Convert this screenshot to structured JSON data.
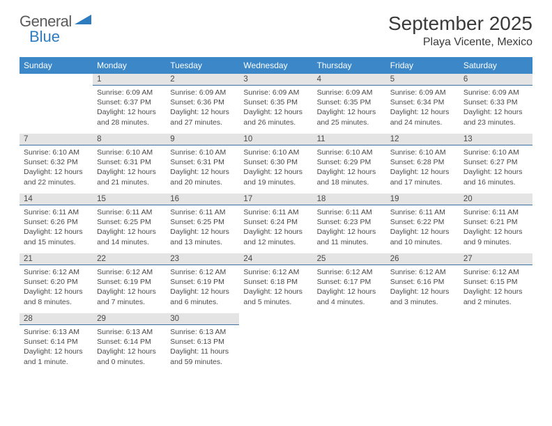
{
  "logo": {
    "part1": "General",
    "part2": "Blue"
  },
  "title": "September 2025",
  "location": "Playa Vicente, Mexico",
  "colors": {
    "header_bg": "#3b87c8",
    "header_text": "#ffffff",
    "daybar_bg": "#e4e4e4",
    "daybar_border": "#3b6fa3",
    "text": "#4a4a4a",
    "logo_blue": "#2e7cc0"
  },
  "day_headers": [
    "Sunday",
    "Monday",
    "Tuesday",
    "Wednesday",
    "Thursday",
    "Friday",
    "Saturday"
  ],
  "weeks": [
    [
      {
        "n": "",
        "sunrise": "",
        "sunset": "",
        "daylight": ""
      },
      {
        "n": "1",
        "sunrise": "Sunrise: 6:09 AM",
        "sunset": "Sunset: 6:37 PM",
        "daylight": "Daylight: 12 hours and 28 minutes."
      },
      {
        "n": "2",
        "sunrise": "Sunrise: 6:09 AM",
        "sunset": "Sunset: 6:36 PM",
        "daylight": "Daylight: 12 hours and 27 minutes."
      },
      {
        "n": "3",
        "sunrise": "Sunrise: 6:09 AM",
        "sunset": "Sunset: 6:35 PM",
        "daylight": "Daylight: 12 hours and 26 minutes."
      },
      {
        "n": "4",
        "sunrise": "Sunrise: 6:09 AM",
        "sunset": "Sunset: 6:35 PM",
        "daylight": "Daylight: 12 hours and 25 minutes."
      },
      {
        "n": "5",
        "sunrise": "Sunrise: 6:09 AM",
        "sunset": "Sunset: 6:34 PM",
        "daylight": "Daylight: 12 hours and 24 minutes."
      },
      {
        "n": "6",
        "sunrise": "Sunrise: 6:09 AM",
        "sunset": "Sunset: 6:33 PM",
        "daylight": "Daylight: 12 hours and 23 minutes."
      }
    ],
    [
      {
        "n": "7",
        "sunrise": "Sunrise: 6:10 AM",
        "sunset": "Sunset: 6:32 PM",
        "daylight": "Daylight: 12 hours and 22 minutes."
      },
      {
        "n": "8",
        "sunrise": "Sunrise: 6:10 AM",
        "sunset": "Sunset: 6:31 PM",
        "daylight": "Daylight: 12 hours and 21 minutes."
      },
      {
        "n": "9",
        "sunrise": "Sunrise: 6:10 AM",
        "sunset": "Sunset: 6:31 PM",
        "daylight": "Daylight: 12 hours and 20 minutes."
      },
      {
        "n": "10",
        "sunrise": "Sunrise: 6:10 AM",
        "sunset": "Sunset: 6:30 PM",
        "daylight": "Daylight: 12 hours and 19 minutes."
      },
      {
        "n": "11",
        "sunrise": "Sunrise: 6:10 AM",
        "sunset": "Sunset: 6:29 PM",
        "daylight": "Daylight: 12 hours and 18 minutes."
      },
      {
        "n": "12",
        "sunrise": "Sunrise: 6:10 AM",
        "sunset": "Sunset: 6:28 PM",
        "daylight": "Daylight: 12 hours and 17 minutes."
      },
      {
        "n": "13",
        "sunrise": "Sunrise: 6:10 AM",
        "sunset": "Sunset: 6:27 PM",
        "daylight": "Daylight: 12 hours and 16 minutes."
      }
    ],
    [
      {
        "n": "14",
        "sunrise": "Sunrise: 6:11 AM",
        "sunset": "Sunset: 6:26 PM",
        "daylight": "Daylight: 12 hours and 15 minutes."
      },
      {
        "n": "15",
        "sunrise": "Sunrise: 6:11 AM",
        "sunset": "Sunset: 6:25 PM",
        "daylight": "Daylight: 12 hours and 14 minutes."
      },
      {
        "n": "16",
        "sunrise": "Sunrise: 6:11 AM",
        "sunset": "Sunset: 6:25 PM",
        "daylight": "Daylight: 12 hours and 13 minutes."
      },
      {
        "n": "17",
        "sunrise": "Sunrise: 6:11 AM",
        "sunset": "Sunset: 6:24 PM",
        "daylight": "Daylight: 12 hours and 12 minutes."
      },
      {
        "n": "18",
        "sunrise": "Sunrise: 6:11 AM",
        "sunset": "Sunset: 6:23 PM",
        "daylight": "Daylight: 12 hours and 11 minutes."
      },
      {
        "n": "19",
        "sunrise": "Sunrise: 6:11 AM",
        "sunset": "Sunset: 6:22 PM",
        "daylight": "Daylight: 12 hours and 10 minutes."
      },
      {
        "n": "20",
        "sunrise": "Sunrise: 6:11 AM",
        "sunset": "Sunset: 6:21 PM",
        "daylight": "Daylight: 12 hours and 9 minutes."
      }
    ],
    [
      {
        "n": "21",
        "sunrise": "Sunrise: 6:12 AM",
        "sunset": "Sunset: 6:20 PM",
        "daylight": "Daylight: 12 hours and 8 minutes."
      },
      {
        "n": "22",
        "sunrise": "Sunrise: 6:12 AM",
        "sunset": "Sunset: 6:19 PM",
        "daylight": "Daylight: 12 hours and 7 minutes."
      },
      {
        "n": "23",
        "sunrise": "Sunrise: 6:12 AM",
        "sunset": "Sunset: 6:19 PM",
        "daylight": "Daylight: 12 hours and 6 minutes."
      },
      {
        "n": "24",
        "sunrise": "Sunrise: 6:12 AM",
        "sunset": "Sunset: 6:18 PM",
        "daylight": "Daylight: 12 hours and 5 minutes."
      },
      {
        "n": "25",
        "sunrise": "Sunrise: 6:12 AM",
        "sunset": "Sunset: 6:17 PM",
        "daylight": "Daylight: 12 hours and 4 minutes."
      },
      {
        "n": "26",
        "sunrise": "Sunrise: 6:12 AM",
        "sunset": "Sunset: 6:16 PM",
        "daylight": "Daylight: 12 hours and 3 minutes."
      },
      {
        "n": "27",
        "sunrise": "Sunrise: 6:12 AM",
        "sunset": "Sunset: 6:15 PM",
        "daylight": "Daylight: 12 hours and 2 minutes."
      }
    ],
    [
      {
        "n": "28",
        "sunrise": "Sunrise: 6:13 AM",
        "sunset": "Sunset: 6:14 PM",
        "daylight": "Daylight: 12 hours and 1 minute."
      },
      {
        "n": "29",
        "sunrise": "Sunrise: 6:13 AM",
        "sunset": "Sunset: 6:14 PM",
        "daylight": "Daylight: 12 hours and 0 minutes."
      },
      {
        "n": "30",
        "sunrise": "Sunrise: 6:13 AM",
        "sunset": "Sunset: 6:13 PM",
        "daylight": "Daylight: 11 hours and 59 minutes."
      },
      {
        "n": "",
        "sunrise": "",
        "sunset": "",
        "daylight": ""
      },
      {
        "n": "",
        "sunrise": "",
        "sunset": "",
        "daylight": ""
      },
      {
        "n": "",
        "sunrise": "",
        "sunset": "",
        "daylight": ""
      },
      {
        "n": "",
        "sunrise": "",
        "sunset": "",
        "daylight": ""
      }
    ]
  ]
}
